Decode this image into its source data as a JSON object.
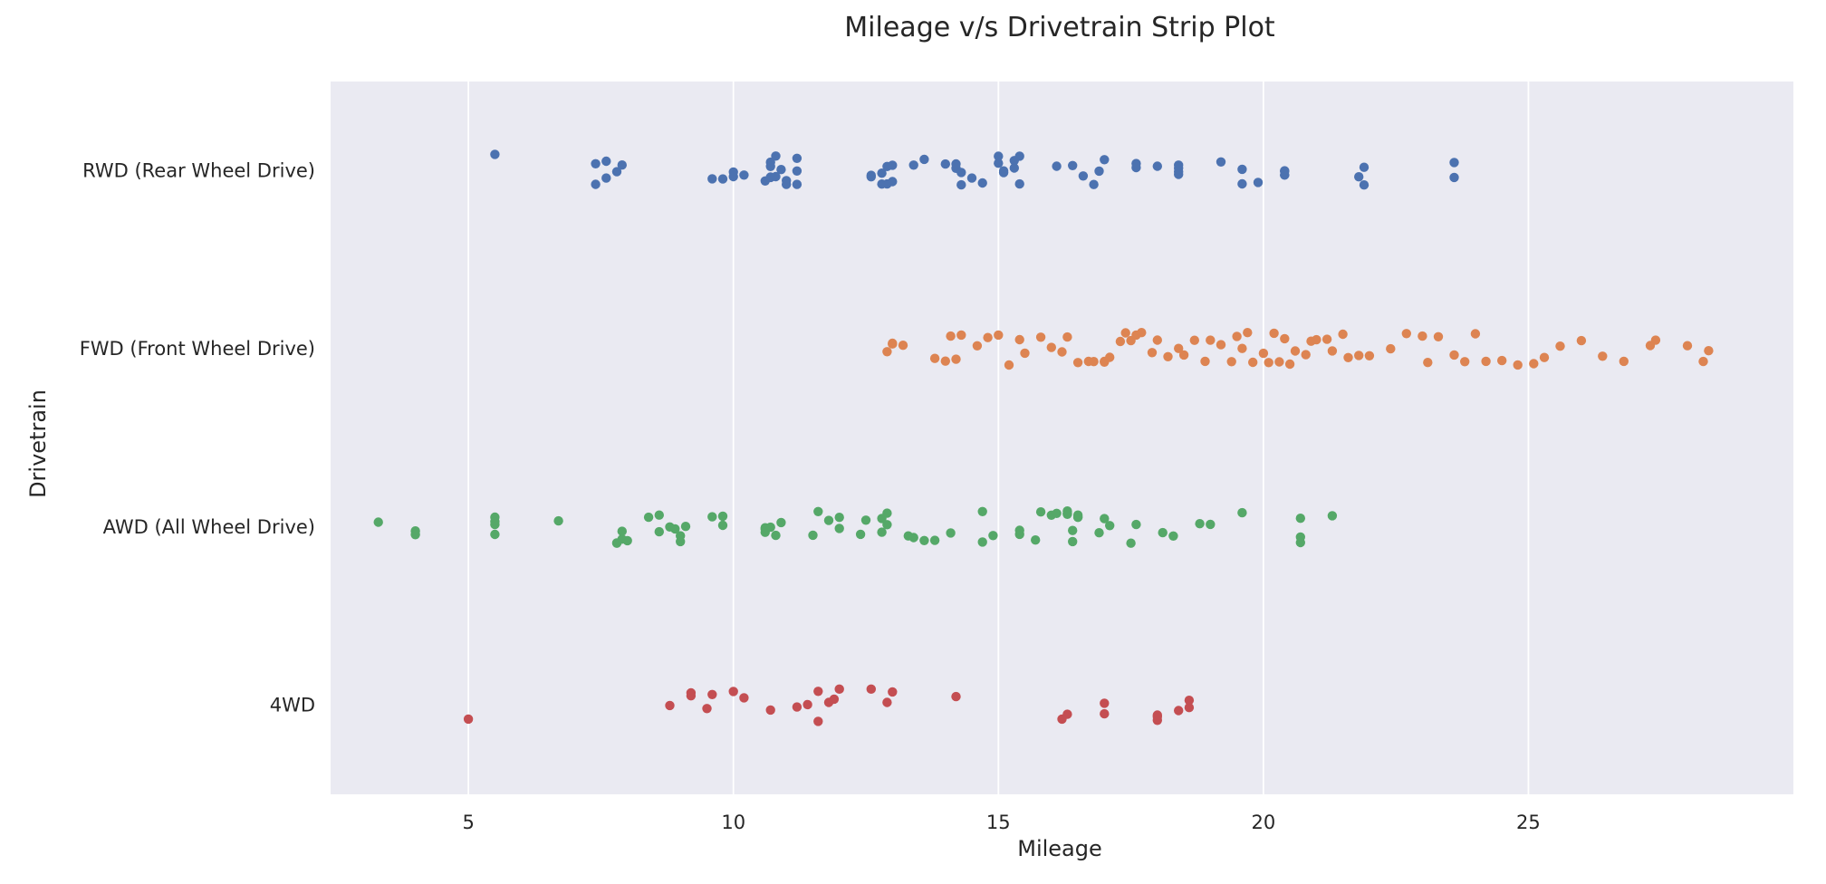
{
  "chart_data": {
    "type": "scatter",
    "subtype": "strip",
    "title": "Mileage v/s Drivetrain Strip Plot",
    "xlabel": "Mileage",
    "ylabel": "Drivetrain",
    "xlim": [
      2.4,
      30.0
    ],
    "xticks": [
      5,
      10,
      15,
      20,
      25
    ],
    "grid": "vertical",
    "legend": "none",
    "categories": [
      "RWD (Rear Wheel Drive)",
      "FWD (Front Wheel Drive)",
      "AWD (All Wheel Drive)",
      "4WD"
    ],
    "colors": [
      "#4c72b0",
      "#dd8452",
      "#55a868",
      "#c44e52"
    ],
    "series": [
      {
        "category": "RWD (Rear Wheel Drive)",
        "x": [
          5.5,
          7.4,
          7.4,
          7.6,
          7.6,
          7.8,
          7.9,
          9.6,
          9.8,
          10.0,
          10.0,
          10.2,
          10.6,
          10.7,
          10.7,
          10.7,
          10.7,
          10.8,
          10.8,
          10.9,
          11.0,
          11.0,
          11.2,
          11.2,
          11.2,
          12.6,
          12.6,
          12.8,
          12.8,
          12.9,
          12.9,
          13.0,
          13.0,
          13.4,
          13.6,
          14.0,
          14.2,
          14.2,
          14.3,
          14.3,
          14.5,
          14.7,
          15.0,
          15.0,
          15.1,
          15.1,
          15.3,
          15.3,
          15.4,
          15.4,
          16.1,
          16.4,
          16.6,
          16.8,
          16.9,
          17.0,
          17.6,
          17.6,
          18.0,
          18.4,
          18.4,
          18.4,
          18.4,
          19.2,
          19.6,
          19.6,
          19.9,
          20.4,
          20.4,
          20.4,
          20.4,
          21.8,
          21.9,
          21.9,
          23.6,
          23.6
        ]
      },
      {
        "category": "FWD (Front Wheel Drive)",
        "x": [
          12.9,
          13.0,
          13.0,
          13.2,
          13.8,
          14.0,
          14.1,
          14.2,
          14.3,
          14.6,
          14.8,
          15.0,
          15.2,
          15.4,
          15.5,
          15.8,
          16.0,
          16.2,
          16.3,
          16.5,
          16.7,
          16.8,
          17.0,
          17.0,
          17.1,
          17.3,
          17.4,
          17.5,
          17.6,
          17.7,
          17.9,
          18.0,
          18.2,
          18.4,
          18.5,
          18.7,
          18.9,
          19.0,
          19.2,
          19.4,
          19.5,
          19.6,
          19.7,
          19.8,
          20.0,
          20.1,
          20.2,
          20.3,
          20.4,
          20.5,
          20.6,
          20.8,
          20.9,
          21.0,
          21.2,
          21.3,
          21.5,
          21.6,
          21.8,
          22.0,
          22.4,
          22.7,
          23.0,
          23.1,
          23.3,
          23.6,
          23.8,
          24.0,
          24.2,
          24.5,
          24.8,
          25.1,
          25.3,
          25.6,
          26.0,
          26.4,
          26.8,
          27.3,
          27.4,
          28.0,
          28.3,
          28.4
        ]
      },
      {
        "category": "AWD (All Wheel Drive)",
        "x": [
          3.3,
          4.0,
          4.0,
          5.5,
          5.5,
          5.5,
          5.5,
          6.7,
          7.8,
          7.8,
          7.9,
          7.9,
          8.0,
          8.4,
          8.6,
          8.6,
          8.8,
          8.9,
          9.0,
          9.0,
          9.1,
          9.6,
          9.8,
          9.8,
          10.6,
          10.6,
          10.6,
          10.7,
          10.8,
          10.9,
          11.5,
          11.6,
          11.8,
          12.0,
          12.0,
          12.4,
          12.5,
          12.8,
          12.8,
          12.9,
          12.9,
          13.3,
          13.4,
          13.6,
          13.8,
          14.1,
          14.7,
          14.7,
          14.9,
          15.4,
          15.4,
          15.7,
          15.8,
          16.0,
          16.1,
          16.3,
          16.3,
          16.3,
          16.4,
          16.4,
          16.5,
          16.5,
          16.5,
          16.9,
          17.0,
          17.1,
          17.5,
          17.6,
          18.1,
          18.3,
          18.8,
          19.0,
          19.6,
          20.7,
          20.7,
          20.7,
          21.3
        ]
      },
      {
        "category": "4WD",
        "x": [
          5.0,
          8.8,
          9.2,
          9.2,
          9.5,
          9.6,
          10.0,
          10.2,
          10.7,
          11.2,
          11.4,
          11.6,
          11.6,
          11.8,
          11.9,
          12.0,
          12.6,
          12.9,
          13.0,
          14.2,
          16.2,
          16.3,
          17.0,
          17.0,
          18.0,
          18.0,
          18.0,
          18.4,
          18.6,
          18.6
        ]
      }
    ]
  }
}
